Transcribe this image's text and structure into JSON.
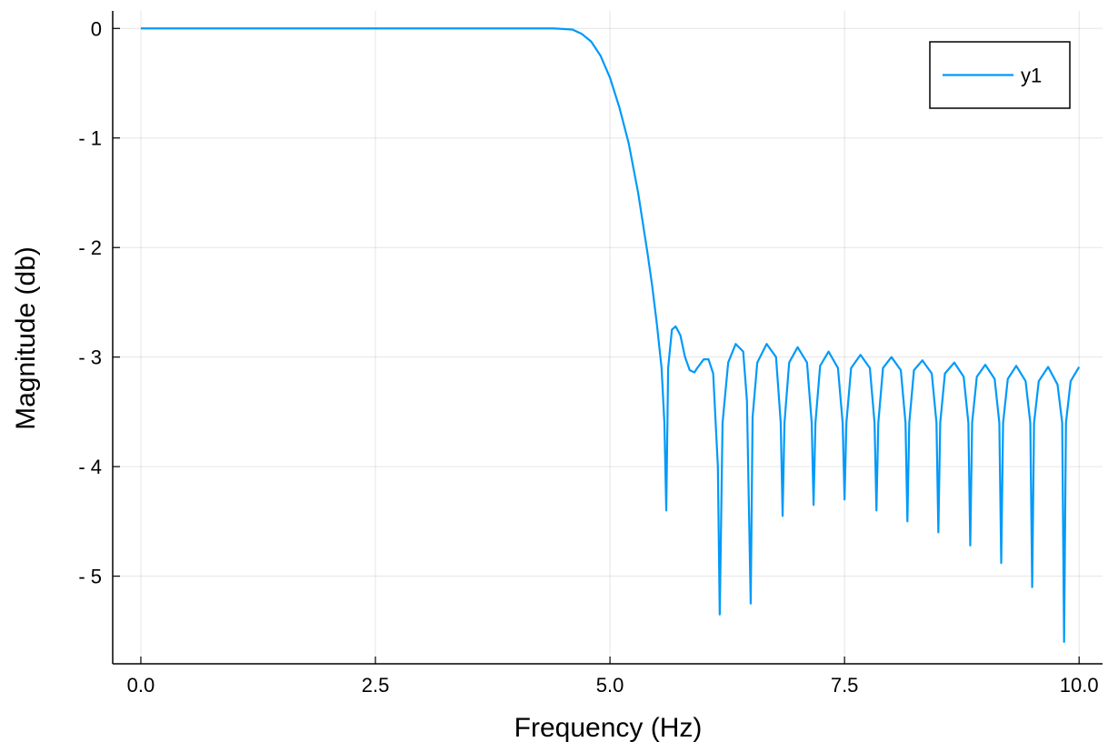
{
  "chart_data": {
    "type": "line",
    "xlabel": "Frequency (Hz)",
    "ylabel": "Magnitude (db)",
    "xlim": [
      -0.3,
      10.25
    ],
    "ylim": [
      -5.8,
      0.16
    ],
    "xticks": [
      0.0,
      2.5,
      5.0,
      7.5,
      10.0
    ],
    "xtick_labels": [
      "0.0",
      "2.5",
      "5.0",
      "7.5",
      "10.0"
    ],
    "yticks": [
      0,
      -1,
      -2,
      -3,
      -4,
      -5
    ],
    "ytick_labels": [
      "0",
      "- 1",
      "- 2",
      "- 3",
      "- 4",
      "- 5"
    ],
    "grid": true,
    "legend": {
      "position": "top-right",
      "entries": [
        "y1"
      ]
    },
    "series": [
      {
        "name": "y1",
        "color": "#009af9",
        "x": [
          0.0,
          4.0,
          4.4,
          4.6,
          4.7,
          4.8,
          4.9,
          5.0,
          5.1,
          5.2,
          5.3,
          5.4,
          5.45,
          5.5,
          5.55,
          5.58,
          5.6,
          5.62,
          5.66,
          5.7,
          5.75,
          5.8,
          5.85,
          5.9,
          5.93,
          6.0,
          6.05,
          6.1,
          6.15,
          6.17,
          6.2,
          6.26,
          6.34,
          6.42,
          6.46,
          6.5,
          6.52,
          6.57,
          6.67,
          6.77,
          6.82,
          6.84,
          6.86,
          6.91,
          7.0,
          7.1,
          7.15,
          7.17,
          7.19,
          7.24,
          7.33,
          7.43,
          7.48,
          7.5,
          7.52,
          7.57,
          7.67,
          7.77,
          7.82,
          7.84,
          7.86,
          7.91,
          8.0,
          8.1,
          8.15,
          8.17,
          8.19,
          8.24,
          8.33,
          8.43,
          8.48,
          8.5,
          8.52,
          8.57,
          8.67,
          8.77,
          8.82,
          8.84,
          8.86,
          8.91,
          9.0,
          9.1,
          9.15,
          9.17,
          9.19,
          9.24,
          9.33,
          9.43,
          9.48,
          9.5,
          9.52,
          9.57,
          9.67,
          9.77,
          9.82,
          9.84,
          9.86,
          9.91,
          10.0
        ],
        "y": [
          0.0,
          0.0,
          0.0,
          -0.01,
          -0.05,
          -0.12,
          -0.25,
          -0.45,
          -0.72,
          -1.05,
          -1.5,
          -2.05,
          -2.35,
          -2.7,
          -3.1,
          -3.6,
          -4.4,
          -3.1,
          -2.75,
          -2.72,
          -2.8,
          -3.0,
          -3.12,
          -3.14,
          -3.1,
          -3.02,
          -3.02,
          -3.15,
          -4.0,
          -5.35,
          -3.6,
          -3.05,
          -2.88,
          -2.95,
          -3.4,
          -5.25,
          -3.55,
          -3.05,
          -2.88,
          -3.0,
          -3.6,
          -4.45,
          -3.6,
          -3.05,
          -2.91,
          -3.05,
          -3.6,
          -4.35,
          -3.6,
          -3.08,
          -2.95,
          -3.1,
          -3.6,
          -4.3,
          -3.6,
          -3.1,
          -2.98,
          -3.1,
          -3.6,
          -4.4,
          -3.6,
          -3.1,
          -3.0,
          -3.12,
          -3.6,
          -4.5,
          -3.6,
          -3.12,
          -3.03,
          -3.15,
          -3.6,
          -4.6,
          -3.6,
          -3.15,
          -3.05,
          -3.18,
          -3.6,
          -4.72,
          -3.6,
          -3.18,
          -3.07,
          -3.2,
          -3.6,
          -4.88,
          -3.6,
          -3.2,
          -3.08,
          -3.22,
          -3.6,
          -5.1,
          -3.6,
          -3.22,
          -3.09,
          -3.25,
          -3.6,
          -5.6,
          -3.6,
          -3.22,
          -3.09
        ]
      }
    ]
  }
}
